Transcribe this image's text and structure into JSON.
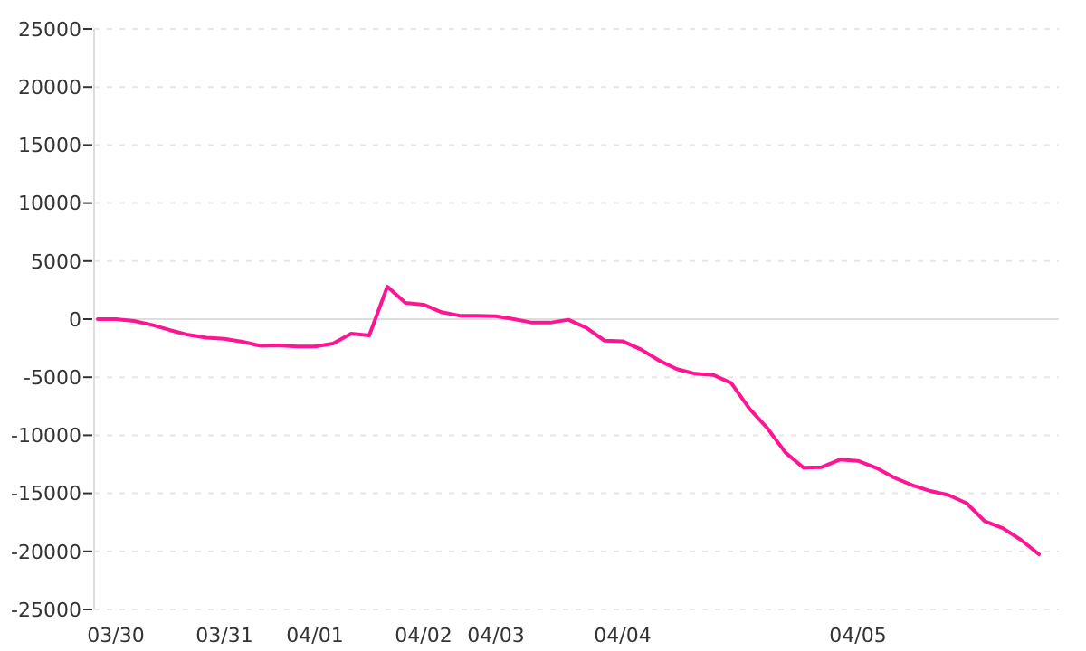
{
  "chart_data": {
    "type": "line",
    "categories": [
      null,
      "03/30",
      null,
      null,
      null,
      null,
      null,
      "03/31",
      null,
      null,
      null,
      null,
      "04/01",
      null,
      null,
      null,
      null,
      null,
      "04/02",
      null,
      null,
      null,
      "04/03",
      null,
      null,
      null,
      null,
      null,
      null,
      "04/04",
      null,
      null,
      null,
      null,
      null,
      null,
      null,
      null,
      null,
      null,
      null,
      null,
      "04/05",
      null,
      null,
      null,
      null,
      null,
      null,
      null,
      null,
      null,
      null
    ],
    "series": [
      {
        "color": "#ff1493",
        "values": [
          0,
          0,
          -150,
          -500,
          -950,
          -1350,
          -1600,
          -1700,
          -1950,
          -2300,
          -2250,
          -2350,
          -2350,
          -2100,
          -1250,
          -1400,
          2800,
          1400,
          1250,
          600,
          300,
          300,
          250,
          0,
          -300,
          -300,
          -50,
          -750,
          -1850,
          -1900,
          -2600,
          -3550,
          -4300,
          -4700,
          -4800,
          -5500,
          -7700,
          -9400,
          -11500,
          -12800,
          -12750,
          -12100,
          -12200,
          -12800,
          -13650,
          -14300,
          -14800,
          -15150,
          -15850,
          -17400,
          -18000,
          -19000,
          -20250
        ]
      }
    ],
    "ylim": [
      -25000,
      25000
    ],
    "yticks": [
      -25000,
      -20000,
      -15000,
      -10000,
      -5000,
      0,
      5000,
      10000,
      15000,
      20000,
      25000
    ],
    "grid": "y",
    "ref_lines": [
      {
        "axis": "y",
        "value": 0,
        "color": "#dddddd"
      }
    ],
    "marker": "none",
    "line_style": "solid"
  }
}
